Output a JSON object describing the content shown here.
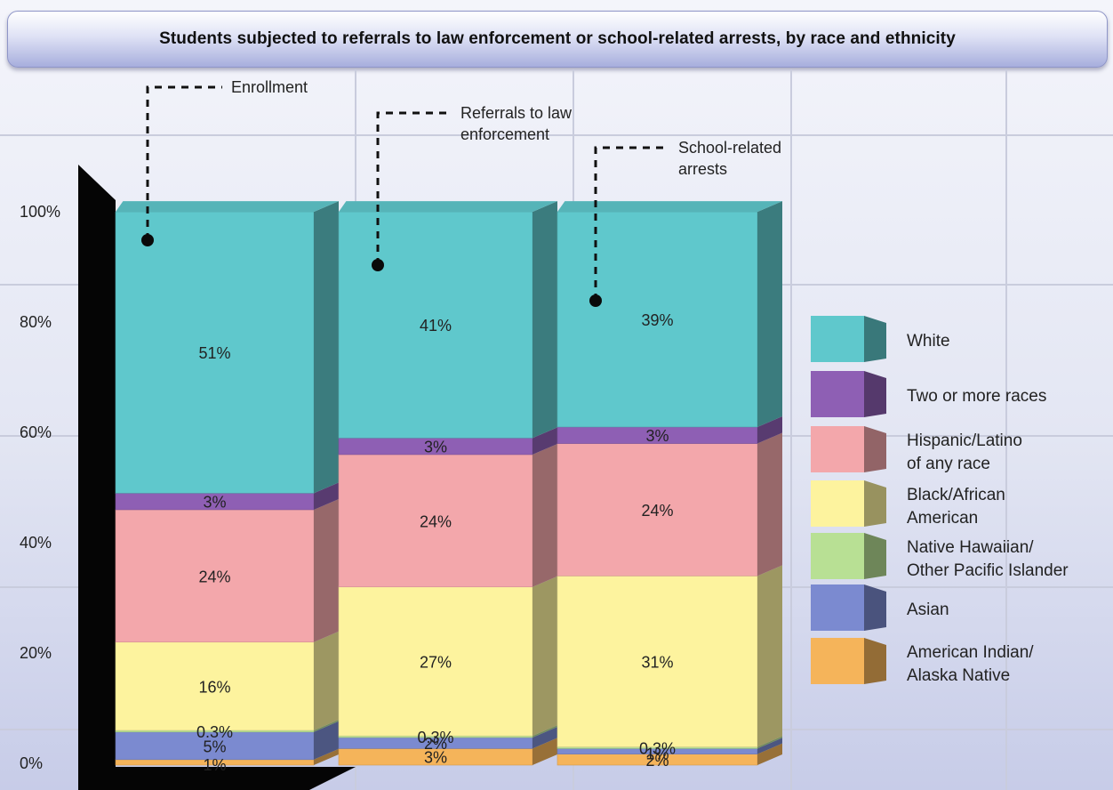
{
  "chart_data": {
    "type": "bar",
    "stacked": true,
    "title": "Students subjected to referrals to law enforcement or school-related arrests, by race and ethnicity",
    "categories": [
      "Enrollment",
      "Referrals to law enforcement",
      "School-related arrests"
    ],
    "category_labels": [
      [
        "Enrollment"
      ],
      [
        "Referrals to law",
        "enforcement"
      ],
      [
        "School-related",
        "arrests"
      ]
    ],
    "yticks": [
      "0%",
      "20%",
      "40%",
      "60%",
      "80%",
      "100%"
    ],
    "ylim": [
      0,
      100
    ],
    "grid": true,
    "legend_position": "right",
    "series": [
      {
        "name": "American Indian/ Alaska Native",
        "legend_lines": [
          "American Indian/",
          "Alaska Native"
        ],
        "color": "#f5b45a",
        "values": [
          1,
          3,
          2
        ],
        "labels": [
          "1%",
          "3%",
          "2%"
        ]
      },
      {
        "name": "Asian",
        "legend_lines": [
          "Asian"
        ],
        "color": "#7b8ad0",
        "values": [
          5,
          2,
          1
        ],
        "labels": [
          "5%",
          "2%",
          "1%"
        ]
      },
      {
        "name": "Native Hawaiian/ Other Pacific Islander",
        "legend_lines": [
          "Native Hawaiian/",
          "Other Pacific Islander"
        ],
        "color": "#b8e094",
        "values": [
          0.3,
          0.3,
          0.3
        ],
        "labels": [
          "0.3%",
          "0.3%",
          "0.3%"
        ]
      },
      {
        "name": "Black/African American",
        "legend_lines": [
          "Black/African",
          "American"
        ],
        "color": "#fdf39e",
        "values": [
          16,
          27,
          31
        ],
        "labels": [
          "16%",
          "27%",
          "31%"
        ]
      },
      {
        "name": "Hispanic/Latino of any race",
        "legend_lines": [
          "Hispanic/Latino",
          "of any race"
        ],
        "color": "#f3a7ab",
        "values": [
          24,
          24,
          24
        ],
        "labels": [
          "24%",
          "24%",
          "24%"
        ]
      },
      {
        "name": "Two or more races",
        "legend_lines": [
          "Two or more races"
        ],
        "color": "#8e5fb4",
        "values": [
          3,
          3,
          3
        ],
        "labels": [
          "3%",
          "3%",
          "3%"
        ]
      },
      {
        "name": "White",
        "legend_lines": [
          "White"
        ],
        "color": "#5fc8cc",
        "values": [
          51,
          41,
          39
        ],
        "labels": [
          "51%",
          "41%",
          "39%"
        ]
      }
    ]
  }
}
